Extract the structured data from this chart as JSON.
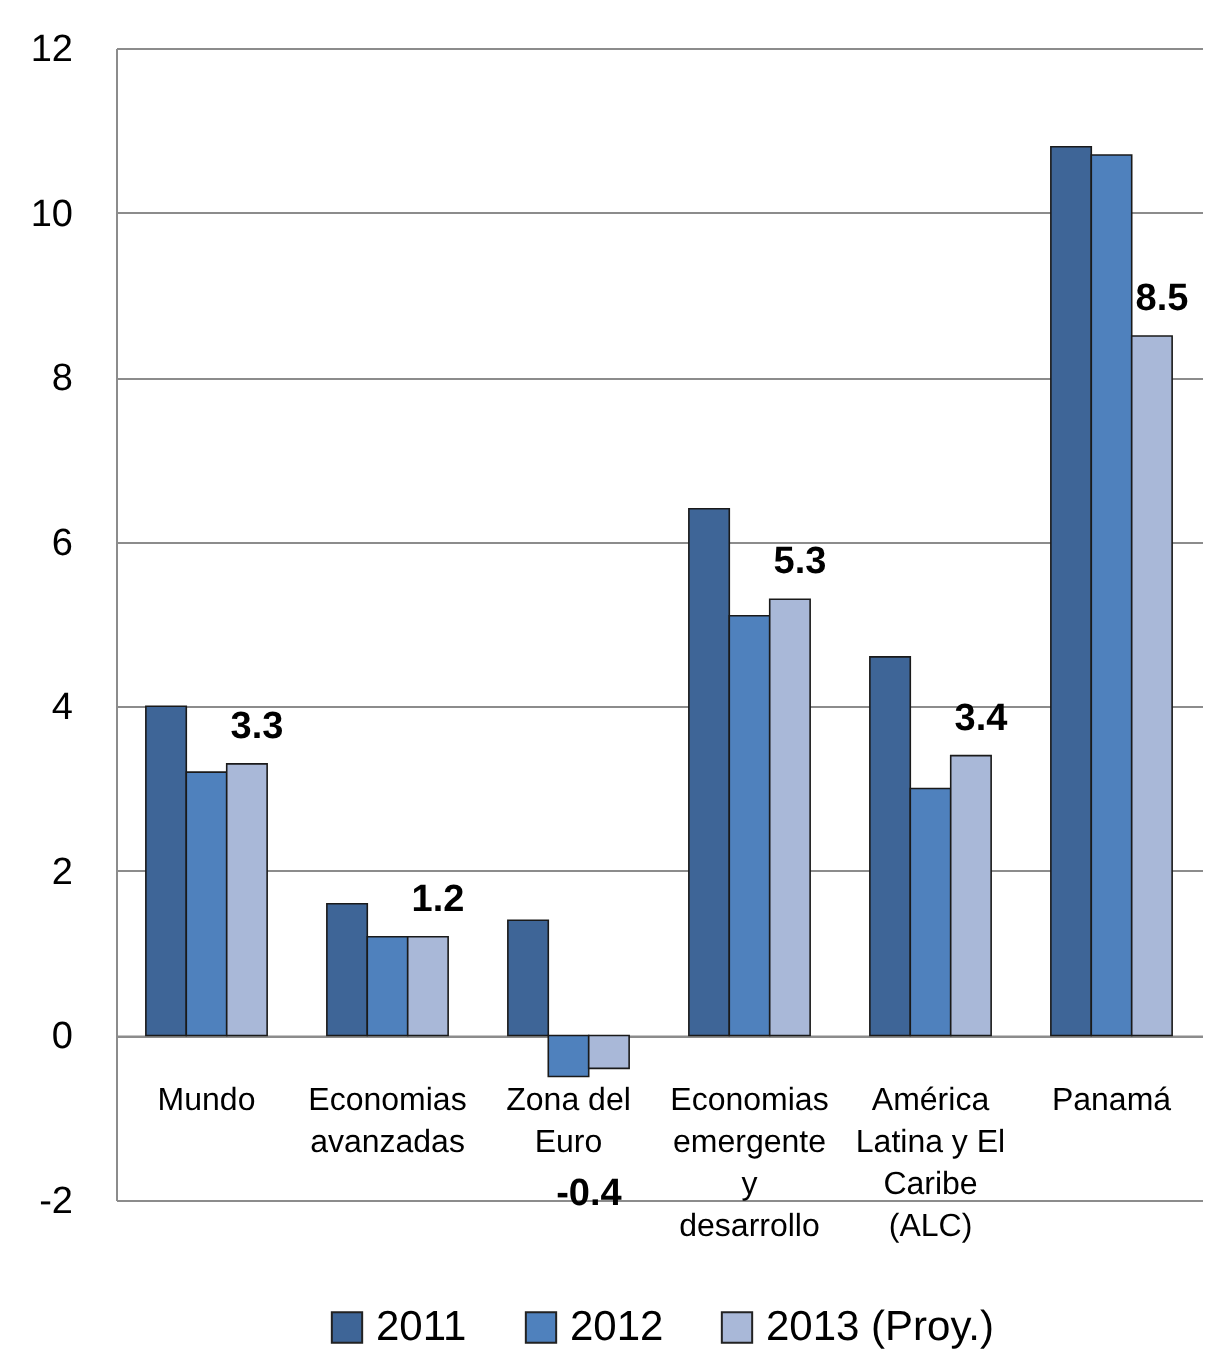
{
  "chart_data": {
    "type": "bar",
    "categories": [
      "Mundo",
      "Economias avanzadas",
      "Zona del Euro",
      "Economias emergente y desarrollo",
      "América Latina y El Caribe (ALC)",
      "Panamá"
    ],
    "series": [
      {
        "name": "2011",
        "color": "#3e6597",
        "values": [
          4.0,
          1.6,
          1.4,
          6.4,
          4.6,
          10.8
        ]
      },
      {
        "name": "2012",
        "color": "#4f81bd",
        "values": [
          3.2,
          1.2,
          -0.5,
          5.1,
          3.0,
          10.7
        ]
      },
      {
        "name": "2013 (Proy.)",
        "color": "#a9b8d8",
        "values": [
          3.3,
          1.2,
          -0.4,
          5.3,
          3.4,
          8.5
        ],
        "value_labels": [
          "3.3",
          "1.2",
          "-0.4",
          "5.3",
          "3.4",
          "8.5"
        ]
      }
    ],
    "ylim": [
      -2,
      12
    ],
    "yticks": [
      -2,
      0,
      2,
      4,
      6,
      8,
      10,
      12
    ],
    "grid": "y",
    "legend": "bottom"
  }
}
